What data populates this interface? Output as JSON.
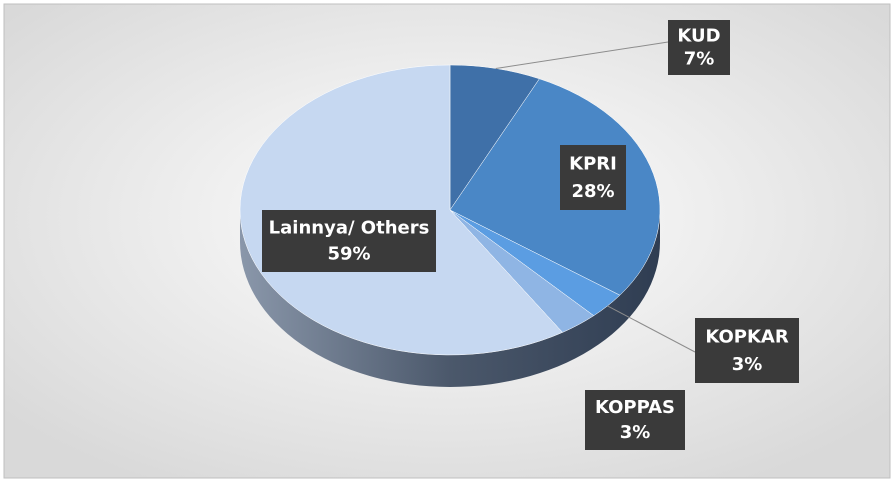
{
  "chart_data": {
    "type": "pie",
    "categories": [
      "KUD",
      "KPRI",
      "KOPKAR",
      "KOPPAS",
      "Lainnya/ Others"
    ],
    "values": [
      7,
      28,
      3,
      3,
      59
    ],
    "value_labels": [
      "7%",
      "28%",
      "3%",
      "3%",
      "59%"
    ],
    "colors": [
      "#3f70a8",
      "#4a87c6",
      "#5b9de2",
      "#8fb5e4",
      "#c6d8f1"
    ]
  }
}
